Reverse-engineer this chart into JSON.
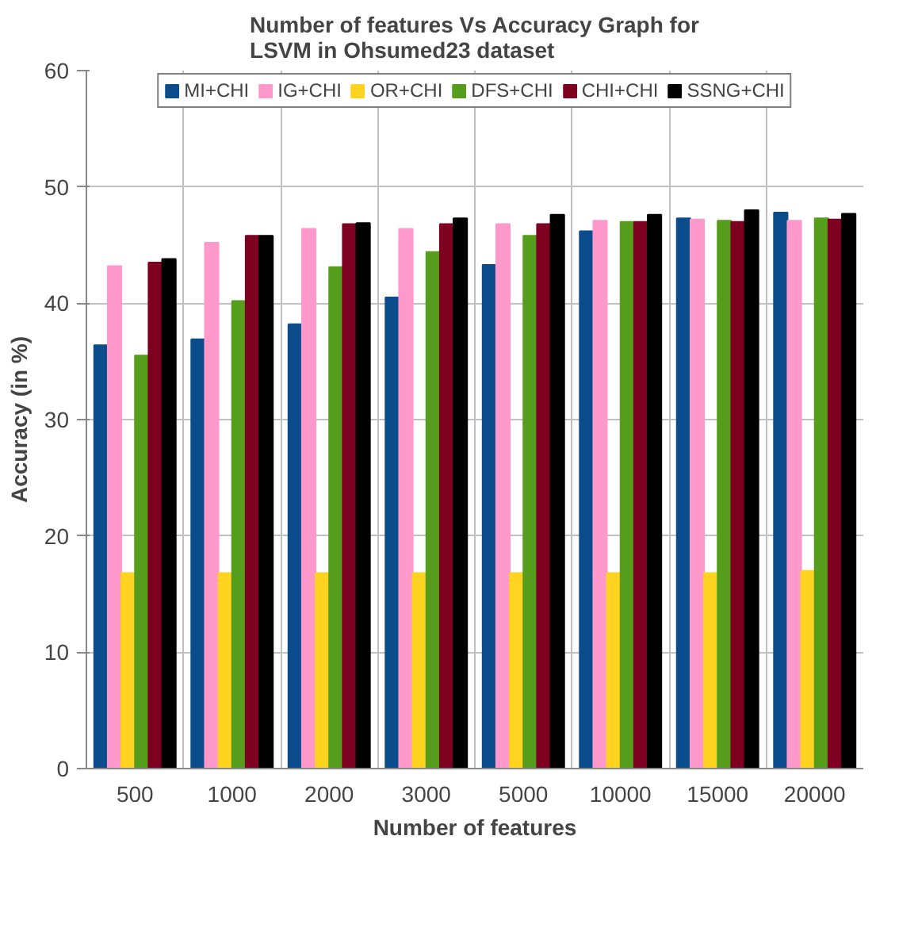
{
  "chart_data": {
    "type": "bar",
    "title": "Number of features Vs Accuracy Graph for\nLSVM in Ohsumed23 dataset",
    "xlabel": "Number of features",
    "ylabel": "Accuracy (in %)",
    "categories": [
      "500",
      "1000",
      "2000",
      "3000",
      "5000",
      "10000",
      "15000",
      "20000"
    ],
    "series": [
      {
        "name": "MI+CHI",
        "color": "#0b4c8c",
        "values": [
          36.4,
          36.9,
          38.2,
          40.5,
          43.3,
          46.2,
          47.3,
          47.8
        ]
      },
      {
        "name": "IG+CHI",
        "color": "#ff99cc",
        "values": [
          43.2,
          45.2,
          46.4,
          46.4,
          46.8,
          47.1,
          47.2,
          47.1
        ]
      },
      {
        "name": "OR+CHI",
        "color": "#ffd320",
        "values": [
          16.8,
          16.8,
          16.8,
          16.8,
          16.8,
          16.8,
          16.8,
          17.0
        ]
      },
      {
        "name": "DFS+CHI",
        "color": "#579d1c",
        "values": [
          35.5,
          40.2,
          43.1,
          44.4,
          45.8,
          47.0,
          47.1,
          47.3
        ]
      },
      {
        "name": "CHI+CHI",
        "color": "#7e0021",
        "values": [
          43.5,
          45.8,
          46.8,
          46.8,
          46.8,
          47.0,
          47.0,
          47.2
        ]
      },
      {
        "name": "SSNG+CHI",
        "color": "#000000",
        "values": [
          43.8,
          45.8,
          46.9,
          47.3,
          47.6,
          47.6,
          48.0,
          47.7
        ]
      }
    ],
    "ylim": [
      0,
      60
    ],
    "yticks": [
      0,
      10,
      20,
      30,
      40,
      50,
      60
    ],
    "grid": true,
    "legend": "top"
  }
}
